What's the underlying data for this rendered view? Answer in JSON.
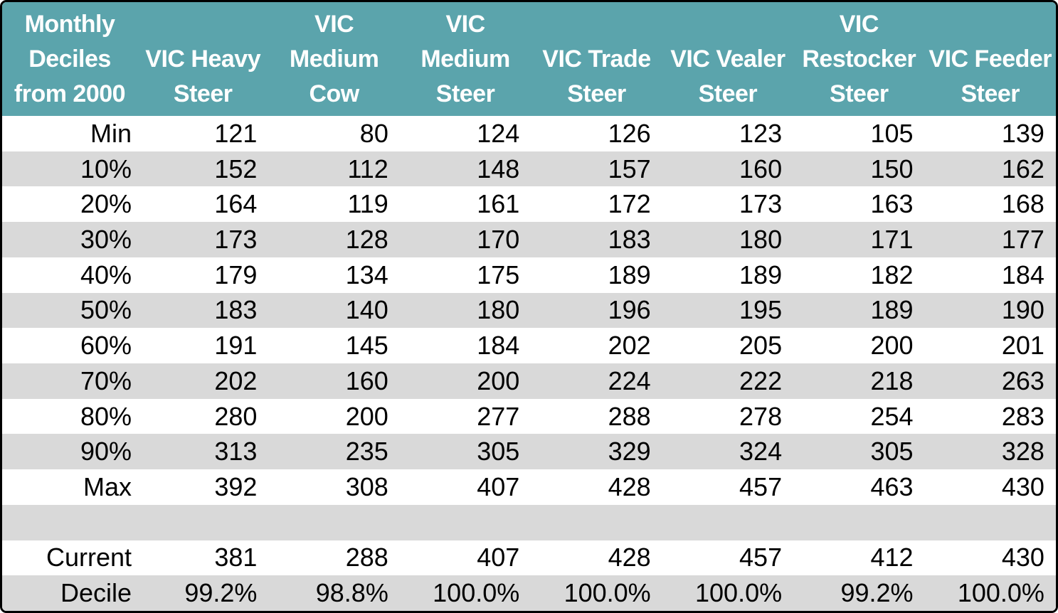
{
  "style": {
    "header_bg": "#5BA4AC",
    "header_text": "#FFFFFF",
    "stripe_gray": "#D9D9D9",
    "stripe_white": "#FFFFFF",
    "text_color": "#000000",
    "border_color": "#000000"
  },
  "table": {
    "header": {
      "label_cell_lines": [
        "Monthly",
        "Deciles",
        "from 2000"
      ],
      "column_lines": [
        [
          "VIC Heavy",
          "Steer"
        ],
        [
          "VIC",
          "Medium",
          "Cow"
        ],
        [
          "VIC",
          "Medium",
          "Steer"
        ],
        [
          "VIC Trade",
          "Steer"
        ],
        [
          "VIC Vealer",
          "Steer"
        ],
        [
          "VIC",
          "Restocker",
          "Steer"
        ],
        [
          "VIC Feeder",
          "Steer"
        ]
      ]
    }
  },
  "chart_data": {
    "type": "table",
    "title": "Monthly Deciles from 2000",
    "columns": [
      "VIC Heavy Steer",
      "VIC Medium Cow",
      "VIC Medium Steer",
      "VIC Trade Steer",
      "VIC Vealer Steer",
      "VIC Restocker Steer",
      "VIC Feeder Steer"
    ],
    "rows": [
      {
        "label": "Min",
        "values": [
          121,
          80,
          124,
          126,
          123,
          105,
          139
        ]
      },
      {
        "label": "10%",
        "values": [
          152,
          112,
          148,
          157,
          160,
          150,
          162
        ]
      },
      {
        "label": "20%",
        "values": [
          164,
          119,
          161,
          172,
          173,
          163,
          168
        ]
      },
      {
        "label": "30%",
        "values": [
          173,
          128,
          170,
          183,
          180,
          171,
          177
        ]
      },
      {
        "label": "40%",
        "values": [
          179,
          134,
          175,
          189,
          189,
          182,
          184
        ]
      },
      {
        "label": "50%",
        "values": [
          183,
          140,
          180,
          196,
          195,
          189,
          190
        ]
      },
      {
        "label": "60%",
        "values": [
          191,
          145,
          184,
          202,
          205,
          200,
          201
        ]
      },
      {
        "label": "70%",
        "values": [
          202,
          160,
          200,
          224,
          222,
          218,
          263
        ]
      },
      {
        "label": "80%",
        "values": [
          280,
          200,
          277,
          288,
          278,
          254,
          283
        ]
      },
      {
        "label": "90%",
        "values": [
          313,
          235,
          305,
          329,
          324,
          305,
          328
        ]
      },
      {
        "label": "Max",
        "values": [
          392,
          308,
          407,
          428,
          457,
          463,
          430
        ]
      },
      {
        "label": "",
        "values": [
          "",
          "",
          "",
          "",
          "",
          "",
          ""
        ]
      },
      {
        "label": "Current",
        "values": [
          381,
          288,
          407,
          428,
          457,
          412,
          430
        ]
      },
      {
        "label": "Decile",
        "values": [
          "99.2%",
          "98.8%",
          "100.0%",
          "100.0%",
          "100.0%",
          "99.2%",
          "100.0%"
        ]
      }
    ]
  }
}
